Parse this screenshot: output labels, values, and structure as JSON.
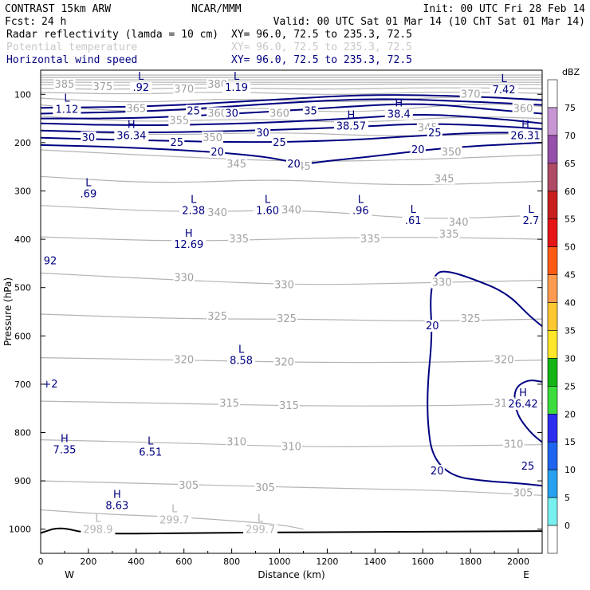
{
  "header": {
    "model": "CONTRAST 15km ARW",
    "center": "NCAR/MMM",
    "init": "Init: 00 UTC Fri 28 Feb 14",
    "fcst_label": "Fcst:",
    "fcst_value": "24 h",
    "valid": "Valid: 00 UTC Sat 01 Mar 14 (10 ChT Sat 01 Mar 14)",
    "fields": [
      {
        "name": "Radar reflectivity (lamda = 10 cm)",
        "xy": "XY=  96.0, 72.5 to 235.3, 72.5",
        "color": "#000000"
      },
      {
        "name": "Potential temperature",
        "xy": "XY=  96.0, 72.5 to 235.3, 72.5",
        "color": "#c8c8c8"
      },
      {
        "name": "Horizontal wind speed",
        "xy": "XY=  96.0, 72.5 to 235.3, 72.5",
        "color": "#000080"
      }
    ]
  },
  "chart_data": {
    "type": "contour",
    "xlabel": "Distance (km)",
    "ylabel": "Pressure (hPa)",
    "xlim": [
      0,
      2100
    ],
    "ylim": [
      1050,
      50
    ],
    "x_ticks": [
      "0",
      "200",
      "400",
      "600",
      "800",
      "1000",
      "1200",
      "1400",
      "1600",
      "1800",
      "2000"
    ],
    "y_ticks": [
      "100",
      "200",
      "300",
      "400",
      "500",
      "600",
      "700",
      "800",
      "900",
      "1000"
    ],
    "x_end_labels": {
      "left": "W",
      "right": "E"
    },
    "colorbar": {
      "unit": "dBZ",
      "labels": [
        "75",
        "70",
        "65",
        "60",
        "55",
        "50",
        "45",
        "40",
        "35",
        "30",
        "25",
        "20",
        "15",
        "10",
        "5",
        "0"
      ],
      "colors": [
        "#ffffff",
        "#c896d2",
        "#9650aa",
        "#af4b64",
        "#c81e1e",
        "#e61414",
        "#ff5a14",
        "#ff9b50",
        "#ffc832",
        "#ffe628",
        "#14b414",
        "#3cdc3c",
        "#2d2df0",
        "#1e64f0",
        "#28a0f0",
        "#78f0f0",
        "#ffffff"
      ]
    },
    "theta_labels": [
      {
        "t": "385",
        "x": 100,
        "p": 80
      },
      {
        "t": "375",
        "x": 260,
        "p": 85
      },
      {
        "t": "365",
        "x": 400,
        "p": 130
      },
      {
        "t": "370",
        "x": 600,
        "p": 90
      },
      {
        "t": "380",
        "x": 740,
        "p": 80
      },
      {
        "t": "360",
        "x": 740,
        "p": 140
      },
      {
        "t": "355",
        "x": 580,
        "p": 155
      },
      {
        "t": "360",
        "x": 1000,
        "p": 140
      },
      {
        "t": "370",
        "x": 1800,
        "p": 100
      },
      {
        "t": "360",
        "x": 2020,
        "p": 130
      },
      {
        "t": "345",
        "x": 1620,
        "p": 170
      },
      {
        "t": "350",
        "x": 720,
        "p": 190
      },
      {
        "t": "350",
        "x": 1720,
        "p": 220
      },
      {
        "t": "345",
        "x": 820,
        "p": 245
      },
      {
        "t": "345",
        "x": 1090,
        "p": 250
      },
      {
        "t": "345",
        "x": 1690,
        "p": 275
      },
      {
        "t": "340",
        "x": 740,
        "p": 345
      },
      {
        "t": "340",
        "x": 1050,
        "p": 340
      },
      {
        "t": "340",
        "x": 1750,
        "p": 365
      },
      {
        "t": "335",
        "x": 830,
        "p": 400
      },
      {
        "t": "335",
        "x": 1380,
        "p": 400
      },
      {
        "t": "335",
        "x": 1710,
        "p": 390
      },
      {
        "t": "330",
        "x": 600,
        "p": 480
      },
      {
        "t": "330",
        "x": 1020,
        "p": 495
      },
      {
        "t": "330",
        "x": 1680,
        "p": 490
      },
      {
        "t": "325",
        "x": 740,
        "p": 560
      },
      {
        "t": "325",
        "x": 1030,
        "p": 565
      },
      {
        "t": "325",
        "x": 1800,
        "p": 565
      },
      {
        "t": "320",
        "x": 600,
        "p": 650
      },
      {
        "t": "320",
        "x": 1020,
        "p": 655
      },
      {
        "t": "320",
        "x": 1940,
        "p": 650
      },
      {
        "t": "315",
        "x": 790,
        "p": 740
      },
      {
        "t": "315",
        "x": 1040,
        "p": 745
      },
      {
        "t": "315",
        "x": 1940,
        "p": 740
      },
      {
        "t": "310",
        "x": 820,
        "p": 820
      },
      {
        "t": "310",
        "x": 1050,
        "p": 830
      },
      {
        "t": "310",
        "x": 1980,
        "p": 825
      },
      {
        "t": "305",
        "x": 620,
        "p": 910
      },
      {
        "t": "305",
        "x": 940,
        "p": 915
      },
      {
        "t": "305",
        "x": 2020,
        "p": 925
      }
    ],
    "wind_labels": [
      {
        "t": "25",
        "x": 640,
        "p": 135
      },
      {
        "t": "30",
        "x": 800,
        "p": 140
      },
      {
        "t": "35",
        "x": 1130,
        "p": 135
      },
      {
        "t": "30",
        "x": 200,
        "p": 190
      },
      {
        "t": "30",
        "x": 930,
        "p": 180
      },
      {
        "t": "25",
        "x": 570,
        "p": 200
      },
      {
        "t": "25",
        "x": 1000,
        "p": 200
      },
      {
        "t": "25",
        "x": 1650,
        "p": 180
      },
      {
        "t": "20",
        "x": 740,
        "p": 220
      },
      {
        "t": "20",
        "x": 1060,
        "p": 245
      },
      {
        "t": "20",
        "x": 1580,
        "p": 215
      },
      {
        "t": "20",
        "x": 1640,
        "p": 580
      },
      {
        "t": "20",
        "x": 1660,
        "p": 880
      },
      {
        "t": "25",
        "x": 2040,
        "p": 870
      }
    ],
    "extrema": [
      {
        "kind": "L",
        "value": ".92",
        "x": 420,
        "p": 70,
        "color": "#000080"
      },
      {
        "kind": "L",
        "value": "1.19",
        "x": 820,
        "p": 70,
        "color": "#000080"
      },
      {
        "kind": "L",
        "value": "7.42",
        "x": 1940,
        "p": 75,
        "color": "#000080"
      },
      {
        "kind": "L",
        "value": "1.12",
        "x": 110,
        "p": 115,
        "color": "#000080"
      },
      {
        "kind": "H",
        "value": "36.34",
        "x": 380,
        "p": 170,
        "color": "#000080"
      },
      {
        "kind": "H",
        "value": "38.57",
        "x": 1300,
        "p": 150,
        "color": "#000080"
      },
      {
        "kind": "H",
        "value": "38.4",
        "x": 1500,
        "p": 125,
        "color": "#000080"
      },
      {
        "kind": "H",
        "value": "26.31",
        "x": 2030,
        "p": 170,
        "color": "#000080"
      },
      {
        "kind": "L",
        "value": ".69",
        "x": 200,
        "p": 290,
        "color": "#000080"
      },
      {
        "kind": "L",
        "value": "2.38",
        "x": 640,
        "p": 325,
        "color": "#000080"
      },
      {
        "kind": "L",
        "value": "1.60",
        "x": 950,
        "p": 325,
        "color": "#000080"
      },
      {
        "kind": "L",
        "value": ".96",
        "x": 1340,
        "p": 325,
        "color": "#000080"
      },
      {
        "kind": "L",
        "value": ".61",
        "x": 1560,
        "p": 345,
        "color": "#000080"
      },
      {
        "kind": "L",
        "value": "2.7",
        "x": 2060,
        "p": 345,
        "color": "#000080"
      },
      {
        "kind": "H",
        "value": "12.69",
        "x": 620,
        "p": 395,
        "color": "#000080"
      },
      {
        "kind": "",
        "value": "92",
        "x": 20,
        "p": 445,
        "color": "#000080"
      },
      {
        "kind": "L",
        "value": "8.58",
        "x": 840,
        "p": 635,
        "color": "#000080"
      },
      {
        "kind": "",
        "value": "+2",
        "x": 20,
        "p": 700,
        "color": "#000080"
      },
      {
        "kind": "H",
        "value": "26.42",
        "x": 2020,
        "p": 725,
        "color": "#000080"
      },
      {
        "kind": "H",
        "value": "7.35",
        "x": 100,
        "p": 820,
        "color": "#000080"
      },
      {
        "kind": "L",
        "value": "6.51",
        "x": 460,
        "p": 825,
        "color": "#000080"
      },
      {
        "kind": "H",
        "value": "8.63",
        "x": 320,
        "p": 935,
        "color": "#000080"
      },
      {
        "kind": "L",
        "value": "298.9",
        "x": 240,
        "p": 985,
        "color": "#b4b4b4"
      },
      {
        "kind": "L",
        "value": "299.7",
        "x": 560,
        "p": 965,
        "color": "#b4b4b4"
      },
      {
        "kind": "L",
        "value": "299.7",
        "x": 920,
        "p": 985,
        "color": "#b4b4b4"
      }
    ],
    "theta_lines": [
      [
        [
          0,
          60
        ],
        [
          2100,
          60
        ]
      ],
      [
        [
          0,
          65
        ],
        [
          2100,
          65
        ]
      ],
      [
        [
          0,
          70
        ],
        [
          2100,
          70
        ]
      ],
      [
        [
          0,
          75
        ],
        [
          2100,
          75
        ]
      ],
      [
        [
          0,
          80
        ],
        [
          300,
          82
        ],
        [
          700,
          78
        ],
        [
          1200,
          80
        ],
        [
          1600,
          78
        ],
        [
          2100,
          80
        ]
      ],
      [
        [
          0,
          88
        ],
        [
          300,
          90
        ],
        [
          700,
          86
        ],
        [
          1200,
          90
        ],
        [
          1600,
          86
        ],
        [
          2100,
          88
        ]
      ],
      [
        [
          0,
          96
        ],
        [
          400,
          100
        ],
        [
          800,
          94
        ],
        [
          1200,
          102
        ],
        [
          1700,
          94
        ],
        [
          2100,
          98
        ]
      ],
      [
        [
          0,
          108
        ],
        [
          400,
          118
        ],
        [
          800,
          108
        ],
        [
          1300,
          118
        ],
        [
          1700,
          104
        ],
        [
          2100,
          110
        ]
      ],
      [
        [
          0,
          122
        ],
        [
          400,
          138
        ],
        [
          900,
          126
        ],
        [
          1300,
          140
        ],
        [
          1800,
          118
        ],
        [
          2100,
          125
        ]
      ],
      [
        [
          0,
          145
        ],
        [
          400,
          158
        ],
        [
          900,
          150
        ],
        [
          1300,
          160
        ],
        [
          1800,
          145
        ],
        [
          2100,
          150
        ]
      ],
      [
        [
          0,
          175
        ],
        [
          500,
          185
        ],
        [
          1000,
          178
        ],
        [
          1500,
          188
        ],
        [
          2100,
          180
        ]
      ],
      [
        [
          0,
          215
        ],
        [
          600,
          230
        ],
        [
          1100,
          240
        ],
        [
          1600,
          235
        ],
        [
          2100,
          225
        ]
      ],
      [
        [
          0,
          270
        ],
        [
          500,
          285
        ],
        [
          1000,
          275
        ],
        [
          1500,
          290
        ],
        [
          2100,
          280
        ]
      ],
      [
        [
          0,
          330
        ],
        [
          600,
          345
        ],
        [
          1100,
          338
        ],
        [
          1600,
          360
        ],
        [
          2100,
          350
        ]
      ],
      [
        [
          0,
          395
        ],
        [
          600,
          405
        ],
        [
          1100,
          398
        ],
        [
          1600,
          395
        ],
        [
          2100,
          400
        ]
      ],
      [
        [
          0,
          470
        ],
        [
          600,
          485
        ],
        [
          1100,
          495
        ],
        [
          1600,
          490
        ],
        [
          2100,
          485
        ]
      ],
      [
        [
          0,
          555
        ],
        [
          600,
          565
        ],
        [
          1100,
          565
        ],
        [
          1600,
          570
        ],
        [
          2100,
          565
        ]
      ],
      [
        [
          0,
          645
        ],
        [
          600,
          650
        ],
        [
          1100,
          655
        ],
        [
          1600,
          655
        ],
        [
          2100,
          650
        ]
      ],
      [
        [
          0,
          735
        ],
        [
          600,
          740
        ],
        [
          1100,
          745
        ],
        [
          1600,
          745
        ],
        [
          2100,
          740
        ]
      ],
      [
        [
          0,
          815
        ],
        [
          600,
          822
        ],
        [
          1100,
          830
        ],
        [
          1600,
          828
        ],
        [
          2100,
          825
        ]
      ],
      [
        [
          0,
          900
        ],
        [
          400,
          905
        ],
        [
          800,
          910
        ],
        [
          1200,
          915
        ],
        [
          1700,
          920
        ],
        [
          2100,
          930
        ]
      ],
      [
        [
          0,
          960
        ],
        [
          300,
          970
        ],
        [
          600,
          975
        ],
        [
          1000,
          990
        ],
        [
          1100,
          1000
        ]
      ]
    ],
    "wind_lines": [
      [
        [
          0,
          128
        ],
        [
          500,
          125
        ],
        [
          1000,
          110
        ],
        [
          1400,
          100
        ],
        [
          1800,
          104
        ],
        [
          2100,
          112
        ]
      ],
      [
        [
          0,
          140
        ],
        [
          500,
          135
        ],
        [
          1000,
          118
        ],
        [
          1400,
          108
        ],
        [
          1800,
          115
        ],
        [
          2100,
          122
        ]
      ],
      [
        [
          0,
          150
        ],
        [
          400,
          150
        ],
        [
          900,
          138
        ],
        [
          1300,
          125
        ],
        [
          1600,
          118
        ],
        [
          1900,
          132
        ],
        [
          2100,
          140
        ]
      ],
      [
        [
          0,
          160
        ],
        [
          400,
          165
        ],
        [
          900,
          160
        ],
        [
          1300,
          150
        ],
        [
          1600,
          140
        ],
        [
          1900,
          150
        ],
        [
          2100,
          160
        ]
      ],
      [
        [
          0,
          175
        ],
        [
          400,
          180
        ],
        [
          900,
          175
        ],
        [
          1300,
          168
        ],
        [
          1600,
          160
        ],
        [
          1900,
          165
        ],
        [
          2100,
          172
        ]
      ],
      [
        [
          0,
          190
        ],
        [
          400,
          195
        ],
        [
          900,
          200
        ],
        [
          1300,
          195
        ],
        [
          1600,
          185
        ],
        [
          1900,
          178
        ],
        [
          2100,
          182
        ]
      ],
      [
        [
          0,
          205
        ],
        [
          400,
          210
        ],
        [
          900,
          225
        ],
        [
          1100,
          245
        ],
        [
          1200,
          238
        ],
        [
          1400,
          228
        ],
        [
          1700,
          210
        ],
        [
          2100,
          200
        ]
      ],
      [
        [
          2100,
          580
        ],
        [
          2050,
          560
        ],
        [
          1950,
          510
        ],
        [
          1800,
          480
        ],
        [
          1700,
          465
        ],
        [
          1650,
          470
        ],
        [
          1630,
          520
        ],
        [
          1640,
          600
        ],
        [
          1620,
          700
        ],
        [
          1620,
          780
        ],
        [
          1640,
          850
        ],
        [
          1720,
          890
        ],
        [
          1850,
          900
        ],
        [
          2000,
          905
        ],
        [
          2100,
          910
        ]
      ],
      [
        [
          2100,
          695
        ],
        [
          2040,
          690
        ],
        [
          1980,
          710
        ],
        [
          1990,
          760
        ],
        [
          2050,
          800
        ],
        [
          2100,
          820
        ]
      ]
    ],
    "surface_line": [
      [
        0,
        1008
      ],
      [
        80,
        995
      ],
      [
        200,
        1010
      ],
      [
        600,
        1008
      ],
      [
        1200,
        1006
      ],
      [
        1800,
        1005
      ],
      [
        2100,
        1004
      ]
    ]
  }
}
